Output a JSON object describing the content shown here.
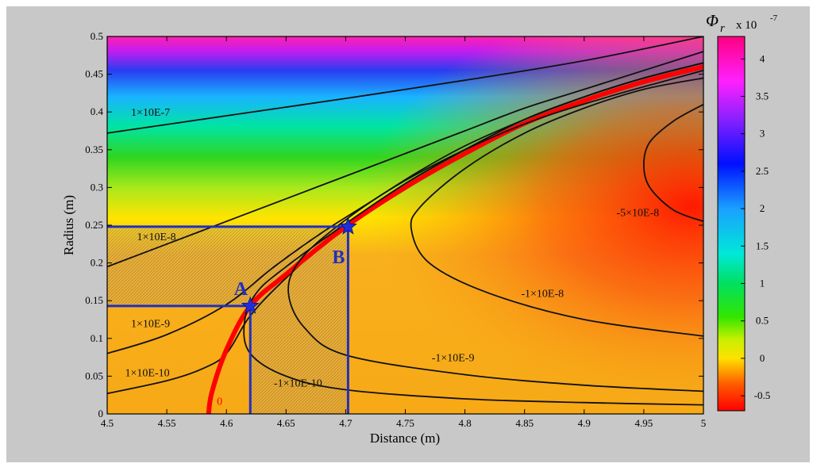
{
  "chart_data": {
    "type": "heatmap",
    "xlabel": "Distance (m)",
    "ylabel": "Radius (m)",
    "xlim": [
      4.5,
      5
    ],
    "ylim": [
      0,
      0.5
    ],
    "x_ticks": [
      "4.5",
      "4.55",
      "4.6",
      "4.65",
      "4.7",
      "4.75",
      "4.8",
      "4.85",
      "4.9",
      "4.95",
      "5"
    ],
    "y_ticks": [
      "0",
      "0.05",
      "0.1",
      "0.15",
      "0.2",
      "0.25",
      "0.3",
      "0.35",
      "0.4",
      "0.45",
      "0.5"
    ],
    "colorbar": {
      "title": "Φ",
      "title_sub": "r",
      "multiplier": "x 10",
      "exponent": "-7",
      "range": [
        -0.7,
        4.3
      ],
      "ticks": [
        "-0.5",
        "0",
        "0.5",
        "1",
        "1.5",
        "2",
        "2.5",
        "3",
        "3.5",
        "4"
      ]
    },
    "contours": [
      {
        "label": "1×10E-7",
        "x": [
          4.5,
          4.6,
          4.7,
          4.8,
          4.9,
          5.0
        ],
        "y": [
          0.372,
          0.395,
          0.418,
          0.442,
          0.468,
          0.5
        ]
      },
      {
        "label": "1×10E-8",
        "x": [
          4.5,
          4.55,
          4.6,
          4.65,
          4.7,
          4.75,
          4.8,
          4.85,
          4.9,
          4.95,
          5.0
        ],
        "y": [
          0.195,
          0.225,
          0.255,
          0.285,
          0.315,
          0.345,
          0.375,
          0.405,
          0.43,
          0.455,
          0.48
        ]
      },
      {
        "label": "1×10E-9",
        "x": [
          4.5,
          4.55,
          4.6,
          4.64,
          4.68,
          4.72,
          4.76,
          4.8,
          4.85,
          4.9,
          4.95,
          5.0
        ],
        "y": [
          0.08,
          0.105,
          0.145,
          0.195,
          0.24,
          0.28,
          0.32,
          0.355,
          0.39,
          0.42,
          0.445,
          0.465
        ]
      },
      {
        "label": "1×10E-10",
        "x": [
          4.5,
          4.55,
          4.58,
          4.6,
          4.62,
          4.65,
          4.7,
          4.75,
          4.8,
          4.85,
          4.9,
          4.95,
          5.0
        ],
        "y": [
          0.027,
          0.044,
          0.06,
          0.08,
          0.13,
          0.18,
          0.25,
          0.305,
          0.35,
          0.39,
          0.42,
          0.445,
          0.465
        ]
      },
      {
        "label": "0",
        "x": [
          4.585,
          4.588,
          4.6,
          4.62,
          4.65,
          4.7,
          4.75,
          4.8,
          4.85,
          4.9,
          4.95,
          5.0
        ],
        "y": [
          0.0,
          0.03,
          0.085,
          0.143,
          0.185,
          0.248,
          0.3,
          0.345,
          0.385,
          0.415,
          0.44,
          0.46
        ]
      },
      {
        "label": "-1×10E-10",
        "x": [
          5.0,
          4.9,
          4.8,
          4.7,
          4.65,
          4.62,
          4.615,
          4.625,
          4.65,
          4.7,
          4.75,
          4.8,
          4.85,
          4.9,
          4.95,
          5.0
        ],
        "y": [
          0.012,
          0.015,
          0.02,
          0.032,
          0.05,
          0.08,
          0.12,
          0.16,
          0.195,
          0.252,
          0.305,
          0.35,
          0.39,
          0.42,
          0.445,
          0.465
        ]
      },
      {
        "label": "-1×10E-9",
        "x": [
          5.0,
          4.9,
          4.8,
          4.7,
          4.665,
          4.652,
          4.66,
          4.69,
          4.74,
          4.8,
          4.86,
          4.92,
          4.97,
          5.0
        ],
        "y": [
          0.03,
          0.038,
          0.052,
          0.078,
          0.115,
          0.16,
          0.2,
          0.245,
          0.3,
          0.35,
          0.39,
          0.42,
          0.442,
          0.455
        ]
      },
      {
        "label": "-1×10E-8",
        "x": [
          5.0,
          4.9,
          4.82,
          4.77,
          4.755,
          4.763,
          4.8,
          4.85,
          4.9,
          4.95,
          5.0
        ],
        "y": [
          0.103,
          0.125,
          0.16,
          0.2,
          0.245,
          0.275,
          0.325,
          0.372,
          0.405,
          0.43,
          0.445
        ]
      },
      {
        "label": "-5×10E-8",
        "x": [
          5.0,
          4.975,
          4.955,
          4.95,
          4.955,
          4.975,
          5.0
        ],
        "y": [
          0.255,
          0.27,
          0.3,
          0.33,
          0.36,
          0.388,
          0.41
        ]
      }
    ],
    "annotations": [
      {
        "label": "A",
        "x": 4.62,
        "y": 0.143
      },
      {
        "label": "B",
        "x": 4.702,
        "y": 0.248
      }
    ]
  }
}
